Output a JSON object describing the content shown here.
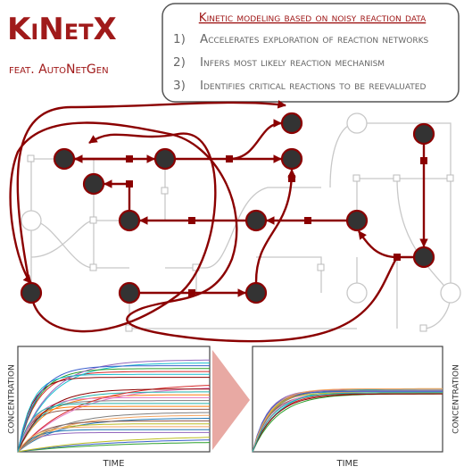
{
  "header": {
    "title": "KiNetX",
    "subtitle": "feat. AutoNetGen"
  },
  "info_box": {
    "title": "Kinetic modeling based on noisy reaction data",
    "items": [
      {
        "number": "1)",
        "text": "Accelerates exploration of reaction networks"
      },
      {
        "number": "2)",
        "text": "Infers most likely reaction mechanism"
      },
      {
        "number": "3)",
        "text": "Identifies critical reactions to be reevaluated"
      }
    ]
  },
  "plots": [
    {
      "x_label": "time",
      "y_label": "concentration"
    },
    {
      "x_label": "time",
      "y_label": "concentration"
    }
  ]
}
